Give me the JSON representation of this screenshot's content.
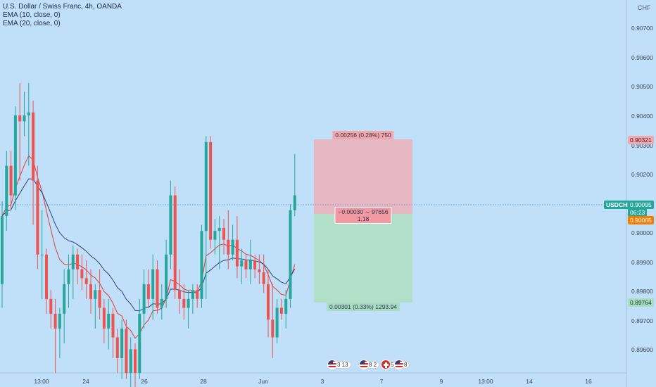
{
  "legend": {
    "title": "U.S. Dollar / Swiss Franc, 4h, OANDA",
    "ema10": "EMA (10, close, 0)",
    "ema20": "EMA (20, close, 0)"
  },
  "axis": {
    "unit": "CHF",
    "price_labels": [
      "0.90700",
      "0.90600",
      "0.90500",
      "0.90400",
      "0.90300",
      "0.90200",
      "0.90000",
      "0.89900",
      "0.89800",
      "0.89700",
      "0.89600"
    ],
    "time_labels": [
      "13:00",
      "24",
      "26",
      "28",
      "Jun",
      "3",
      "7",
      "9",
      "13:00",
      "14",
      "16"
    ]
  },
  "tags": {
    "target_price": "0.90321",
    "symbol": "USDCHF",
    "current_price": "0.90095",
    "countdown": "06:23",
    "entry_price": "0.90065",
    "stop_price": "0.89764"
  },
  "position_tool": {
    "top_label": "0.00256 (0.28%) 750",
    "mid_label_1": "−0.00030 ∼ 97656",
    "mid_label_2": "1.18",
    "bottom_label": "0.00301 (0.33%) 1293.94"
  },
  "events": [
    {
      "count": "3 13",
      "flag": "us"
    },
    {
      "count": "8 2",
      "flag": "us"
    },
    {
      "count": "5",
      "flag": "ch"
    },
    {
      "count": "8",
      "flag": "us"
    }
  ],
  "colors": {
    "background": "#bfe0f8",
    "bull": "#26a69a",
    "bear": "#ef5350",
    "ema10": "#e53935",
    "ema20": "#2c3e7a",
    "target_zone": "#e6b8c4",
    "stop_zone": "#b2dfc8"
  },
  "chart_data": {
    "type": "candlestick",
    "symbol": "USDCHF",
    "interval": "4h",
    "ylim": [
      0.895,
      0.9076
    ],
    "candles": [
      {
        "o": 0.898,
        "h": 0.9008,
        "l": 0.8972,
        "c": 0.9003
      },
      {
        "o": 0.9003,
        "h": 0.9025,
        "l": 0.8998,
        "c": 0.902
      },
      {
        "o": 0.902,
        "h": 0.9025,
        "l": 0.9005,
        "c": 0.901
      },
      {
        "o": 0.901,
        "h": 0.904,
        "l": 0.9005,
        "c": 0.9037
      },
      {
        "o": 0.9037,
        "h": 0.9048,
        "l": 0.9015,
        "c": 0.9035
      },
      {
        "o": 0.9035,
        "h": 0.9045,
        "l": 0.903,
        "c": 0.9037
      },
      {
        "o": 0.9037,
        "h": 0.9048,
        "l": 0.902,
        "c": 0.9038
      },
      {
        "o": 0.9038,
        "h": 0.9042,
        "l": 0.9,
        "c": 0.9015
      },
      {
        "o": 0.9015,
        "h": 0.902,
        "l": 0.8985,
        "c": 0.899
      },
      {
        "o": 0.899,
        "h": 0.9005,
        "l": 0.8975,
        "c": 0.899
      },
      {
        "o": 0.899,
        "h": 0.8992,
        "l": 0.897,
        "c": 0.8975
      },
      {
        "o": 0.8975,
        "h": 0.8978,
        "l": 0.8965,
        "c": 0.897
      },
      {
        "o": 0.897,
        "h": 0.8975,
        "l": 0.895,
        "c": 0.8965
      },
      {
        "o": 0.8965,
        "h": 0.8972,
        "l": 0.8955,
        "c": 0.897
      },
      {
        "o": 0.897,
        "h": 0.8985,
        "l": 0.896,
        "c": 0.898
      },
      {
        "o": 0.898,
        "h": 0.899,
        "l": 0.8972,
        "c": 0.8985
      },
      {
        "o": 0.8985,
        "h": 0.8993,
        "l": 0.8975,
        "c": 0.899
      },
      {
        "o": 0.899,
        "h": 0.8992,
        "l": 0.898,
        "c": 0.8985
      },
      {
        "o": 0.8985,
        "h": 0.899,
        "l": 0.8978,
        "c": 0.8982
      },
      {
        "o": 0.8982,
        "h": 0.8988,
        "l": 0.8975,
        "c": 0.898
      },
      {
        "o": 0.898,
        "h": 0.8985,
        "l": 0.897,
        "c": 0.8975
      },
      {
        "o": 0.8975,
        "h": 0.898,
        "l": 0.8965,
        "c": 0.8978
      },
      {
        "o": 0.8978,
        "h": 0.8985,
        "l": 0.8968,
        "c": 0.8972
      },
      {
        "o": 0.8972,
        "h": 0.8975,
        "l": 0.896,
        "c": 0.8965
      },
      {
        "o": 0.8965,
        "h": 0.8975,
        "l": 0.8958,
        "c": 0.897
      },
      {
        "o": 0.897,
        "h": 0.8972,
        "l": 0.8955,
        "c": 0.8962
      },
      {
        "o": 0.8962,
        "h": 0.8965,
        "l": 0.895,
        "c": 0.8955
      },
      {
        "o": 0.8955,
        "h": 0.8968,
        "l": 0.8948,
        "c": 0.8965
      },
      {
        "o": 0.8965,
        "h": 0.8968,
        "l": 0.8948,
        "c": 0.895
      },
      {
        "o": 0.895,
        "h": 0.8962,
        "l": 0.8945,
        "c": 0.8958
      },
      {
        "o": 0.8958,
        "h": 0.896,
        "l": 0.8945,
        "c": 0.895
      },
      {
        "o": 0.895,
        "h": 0.8975,
        "l": 0.8948,
        "c": 0.897
      },
      {
        "o": 0.897,
        "h": 0.8985,
        "l": 0.8965,
        "c": 0.898
      },
      {
        "o": 0.898,
        "h": 0.8985,
        "l": 0.8972,
        "c": 0.8975
      },
      {
        "o": 0.8975,
        "h": 0.899,
        "l": 0.8968,
        "c": 0.8985
      },
      {
        "o": 0.8985,
        "h": 0.8988,
        "l": 0.897,
        "c": 0.8972
      },
      {
        "o": 0.8972,
        "h": 0.898,
        "l": 0.8968,
        "c": 0.8975
      },
      {
        "o": 0.8975,
        "h": 0.8995,
        "l": 0.8972,
        "c": 0.899
      },
      {
        "o": 0.899,
        "h": 0.9015,
        "l": 0.8985,
        "c": 0.901
      },
      {
        "o": 0.901,
        "h": 0.9013,
        "l": 0.8975,
        "c": 0.8978
      },
      {
        "o": 0.8978,
        "h": 0.8985,
        "l": 0.897,
        "c": 0.8975
      },
      {
        "o": 0.8975,
        "h": 0.898,
        "l": 0.8968,
        "c": 0.8972
      },
      {
        "o": 0.8972,
        "h": 0.8978,
        "l": 0.8965,
        "c": 0.8975
      },
      {
        "o": 0.8975,
        "h": 0.898,
        "l": 0.897,
        "c": 0.8978
      },
      {
        "o": 0.8978,
        "h": 0.898,
        "l": 0.8972,
        "c": 0.8975
      },
      {
        "o": 0.8975,
        "h": 0.9,
        "l": 0.8972,
        "c": 0.8998
      },
      {
        "o": 0.8998,
        "h": 0.903,
        "l": 0.8975,
        "c": 0.9028
      },
      {
        "o": 0.9028,
        "h": 0.903,
        "l": 0.8992,
        "c": 0.8995
      },
      {
        "o": 0.8995,
        "h": 0.9002,
        "l": 0.899,
        "c": 0.8998
      },
      {
        "o": 0.8998,
        "h": 0.9003,
        "l": 0.8985,
        "c": 0.8999
      },
      {
        "o": 0.8999,
        "h": 0.9002,
        "l": 0.899,
        "c": 0.8995
      },
      {
        "o": 0.8995,
        "h": 0.9005,
        "l": 0.8985,
        "c": 0.899
      },
      {
        "o": 0.899,
        "h": 0.9,
        "l": 0.8988,
        "c": 0.8995
      },
      {
        "o": 0.8995,
        "h": 0.9003,
        "l": 0.8982,
        "c": 0.8986
      },
      {
        "o": 0.8986,
        "h": 0.8992,
        "l": 0.898,
        "c": 0.8988
      },
      {
        "o": 0.8988,
        "h": 0.899,
        "l": 0.8982,
        "c": 0.8985
      },
      {
        "o": 0.8985,
        "h": 0.8995,
        "l": 0.898,
        "c": 0.8988
      },
      {
        "o": 0.8988,
        "h": 0.899,
        "l": 0.8982,
        "c": 0.8985
      },
      {
        "o": 0.8985,
        "h": 0.899,
        "l": 0.898,
        "c": 0.8984
      },
      {
        "o": 0.8984,
        "h": 0.899,
        "l": 0.8977,
        "c": 0.898
      },
      {
        "o": 0.898,
        "h": 0.8985,
        "l": 0.8962,
        "c": 0.8968
      },
      {
        "o": 0.8968,
        "h": 0.898,
        "l": 0.8955,
        "c": 0.8962
      },
      {
        "o": 0.8962,
        "h": 0.8975,
        "l": 0.896,
        "c": 0.8972
      },
      {
        "o": 0.8972,
        "h": 0.8975,
        "l": 0.8968,
        "c": 0.897
      },
      {
        "o": 0.897,
        "h": 0.8978,
        "l": 0.8965,
        "c": 0.8975
      },
      {
        "o": 0.8975,
        "h": 0.9007,
        "l": 0.8972,
        "c": 0.9005
      },
      {
        "o": 0.9005,
        "h": 0.9024,
        "l": 0.9003,
        "c": 0.901
      }
    ]
  }
}
